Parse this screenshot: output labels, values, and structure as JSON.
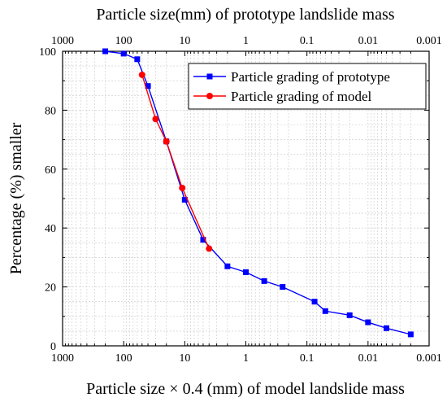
{
  "chart_data": {
    "type": "line",
    "x_scale": "log",
    "x_reversed": true,
    "xlim": [
      1000,
      0.001
    ],
    "ylim": [
      0,
      100
    ],
    "xlabel_bottom": "Particle size × 0.4 (mm) of model landslide mass",
    "xlabel_top": "Particle size(mm) of prototype landslide mass",
    "ylabel": "Percentage (%) smaller",
    "x_ticks": [
      "1000",
      "100",
      "10",
      "1",
      "0.1",
      "0.01",
      "0.001"
    ],
    "x_tick_values": [
      1000,
      100,
      10,
      1,
      0.1,
      0.01,
      0.001
    ],
    "y_ticks": [
      "0",
      "20",
      "40",
      "60",
      "80",
      "100"
    ],
    "y_tick_values": [
      0,
      20,
      40,
      60,
      80,
      100
    ],
    "grid": true,
    "legend_position": "top-right",
    "series": [
      {
        "name": "Particle grading of prototype",
        "color": "#0000ff",
        "marker": "square",
        "x": [
          200,
          100,
          60,
          40,
          20,
          10,
          5,
          2,
          1,
          0.5,
          0.25,
          0.075,
          0.05,
          0.02,
          0.01,
          0.005,
          0.002
        ],
        "y": [
          100,
          99.2,
          97.3,
          88.2,
          69.4,
          49.6,
          36,
          27,
          25,
          22,
          20,
          15,
          11.8,
          10.4,
          8,
          6,
          3.9
        ]
      },
      {
        "name": "Particle grading of model",
        "color": "#ff0000",
        "marker": "circle",
        "x": [
          50,
          30,
          20,
          11,
          4
        ],
        "y": [
          92,
          77,
          69.4,
          53.6,
          33
        ]
      }
    ]
  }
}
